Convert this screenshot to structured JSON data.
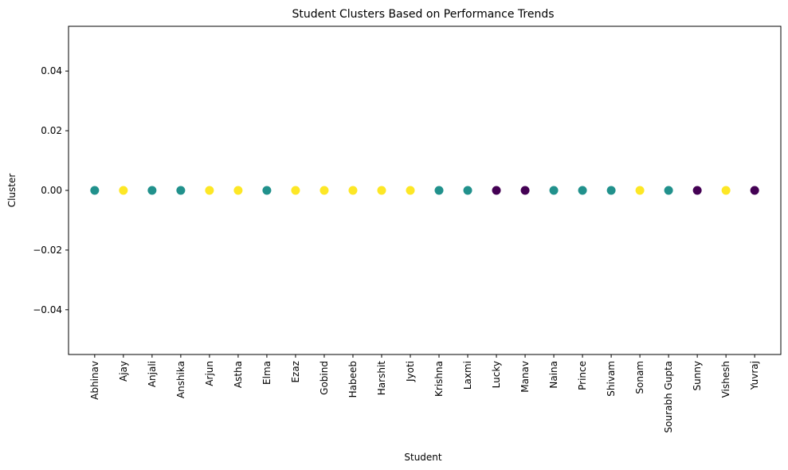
{
  "chart_data": {
    "type": "scatter",
    "title": "Student Clusters Based on Performance Trends",
    "xlabel": "Student",
    "ylabel": "Cluster",
    "ylim": [
      -0.055,
      0.055
    ],
    "yticks": [
      -0.04,
      -0.02,
      0.0,
      0.02,
      0.04
    ],
    "ytick_labels": [
      "−0.04",
      "−0.02",
      "0.00",
      "0.02",
      "0.04"
    ],
    "grid": false,
    "legend": "none",
    "colormap": "viridis",
    "cluster_colors": {
      "0": "#440154",
      "1": "#21918c",
      "2": "#fde725"
    },
    "categories": [
      "Abhinav",
      "Ajay",
      "Anjali",
      "Anshika",
      "Arjun",
      "Astha",
      "Elma",
      "Ezaz",
      "Gobind",
      "Habeeb",
      "Harshit",
      "Jyoti",
      "Krishna",
      "Laxmi",
      "Lucky",
      "Manav",
      "Naina",
      "Prince",
      "Shivam",
      "Sonam",
      "Sourabh Gupta",
      "Sunny",
      "Vishesh",
      "Yuvraj"
    ],
    "values": [
      0,
      0,
      0,
      0,
      0,
      0,
      0,
      0,
      0,
      0,
      0,
      0,
      0,
      0,
      0,
      0,
      0,
      0,
      0,
      0,
      0,
      0,
      0,
      0
    ],
    "color_groups": [
      1,
      2,
      1,
      1,
      2,
      2,
      1,
      2,
      2,
      2,
      2,
      2,
      1,
      1,
      0,
      0,
      1,
      1,
      1,
      2,
      1,
      0,
      2,
      0
    ]
  }
}
